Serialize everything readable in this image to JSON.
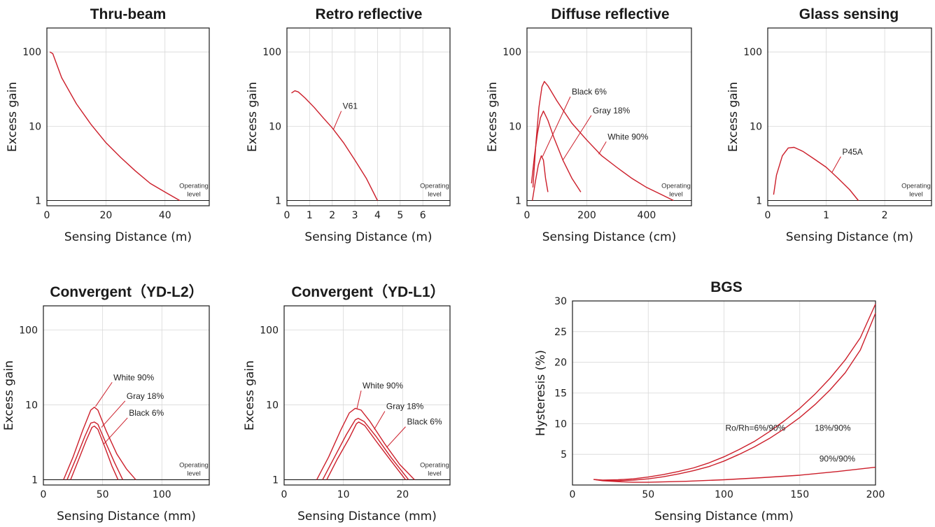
{
  "colors": {
    "curve": "#cc1e2a",
    "frame": "#1a1a1a",
    "grid": "#d8d8d8"
  },
  "chart_data": [
    {
      "type": "line",
      "title": "Thru-beam",
      "xlabel": "Sensing Distance (m)",
      "ylabel": "Excess gain",
      "yscale": "log",
      "xlim": [
        0,
        55
      ],
      "ylim": [
        0.85,
        210
      ],
      "xticks": [
        0,
        20,
        40
      ],
      "yticks": [
        1,
        10,
        100
      ],
      "operating_level": {
        "value": 1,
        "label_line1": "Operating",
        "label_line2": "level"
      },
      "series": [
        {
          "x": [
            1,
            2,
            5,
            10,
            15,
            20,
            25,
            30,
            35,
            40,
            45
          ],
          "y": [
            100,
            95,
            45,
            20,
            10.5,
            6,
            3.8,
            2.5,
            1.7,
            1.3,
            1
          ]
        }
      ],
      "annotations": []
    },
    {
      "type": "line",
      "title": "Retro reflective",
      "xlabel": "Sensing Distance (m)",
      "ylabel": "Excess gain",
      "yscale": "log",
      "xlim": [
        0,
        7.2
      ],
      "ylim": [
        0.85,
        210
      ],
      "xticks": [
        0,
        1,
        2,
        3,
        4,
        5,
        6
      ],
      "yticks": [
        1,
        10,
        100
      ],
      "operating_level": {
        "value": 1,
        "label_line1": "Operating",
        "label_line2": "level"
      },
      "series": [
        {
          "name": "V61",
          "x": [
            0.2,
            0.35,
            0.5,
            0.8,
            1.2,
            1.6,
            2.0,
            2.5,
            3.0,
            3.5,
            4.0
          ],
          "y": [
            28,
            30,
            29,
            24,
            18,
            13,
            9.5,
            6,
            3.5,
            2,
            1
          ]
        }
      ],
      "annotations": [
        {
          "text": "V61",
          "series": 0,
          "anchor_x": 2.05,
          "anchor_y": 9,
          "label_x": 2.4,
          "label_y": 16
        }
      ]
    },
    {
      "type": "line",
      "title": "Diffuse reflective",
      "xlabel": "Sensing Distance (cm)",
      "ylabel": "Excess gain",
      "yscale": "log",
      "xlim": [
        0,
        550
      ],
      "ylim": [
        0.85,
        210
      ],
      "xticks": [
        0,
        200,
        400
      ],
      "yticks": [
        1,
        10,
        100
      ],
      "operating_level": {
        "value": 1,
        "label_line1": "Operating",
        "label_line2": "level"
      },
      "series": [
        {
          "name": "White 90%",
          "x": [
            20,
            30,
            40,
            50,
            58,
            70,
            100,
            150,
            200,
            250,
            300,
            350,
            400,
            450,
            490
          ],
          "y": [
            1.5,
            6,
            18,
            34,
            40,
            35,
            22,
            11,
            6.5,
            4,
            2.8,
            2,
            1.5,
            1.2,
            1
          ]
        },
        {
          "name": "Gray 18%",
          "x": [
            15,
            25,
            35,
            45,
            55,
            70,
            90,
            120,
            150,
            180
          ],
          "y": [
            1.7,
            4,
            8,
            13,
            16,
            12,
            7,
            3.5,
            2,
            1.3
          ]
        },
        {
          "name": "Black 6%",
          "x": [
            18,
            28,
            38,
            48,
            55,
            62,
            70
          ],
          "y": [
            1,
            1.8,
            3,
            4,
            3.5,
            2,
            1.3
          ]
        }
      ],
      "annotations": [
        {
          "text": "Black 6%",
          "series": 2,
          "anchor_x": 52,
          "anchor_y": 3.9,
          "label_x": 145,
          "label_y": 25
        },
        {
          "text": "Gray 18%",
          "series": 1,
          "anchor_x": 120,
          "anchor_y": 3.5,
          "label_x": 215,
          "label_y": 14
        },
        {
          "text": "White 90%",
          "series": 0,
          "anchor_x": 240,
          "anchor_y": 4.2,
          "label_x": 265,
          "label_y": 6.2
        }
      ]
    },
    {
      "type": "line",
      "title": "Glass sensing",
      "xlabel": "Sensing Distance (m)",
      "ylabel": "Excess gain",
      "yscale": "log",
      "xlim": [
        0,
        2.8
      ],
      "ylim": [
        0.85,
        210
      ],
      "xticks": [
        0,
        1,
        2
      ],
      "yticks": [
        1,
        10,
        100
      ],
      "operating_level": {
        "value": 1,
        "label_line1": "Operating",
        "label_line2": "level"
      },
      "series": [
        {
          "name": "P45A",
          "x": [
            0.1,
            0.15,
            0.25,
            0.35,
            0.45,
            0.6,
            0.8,
            1.0,
            1.2,
            1.4,
            1.55
          ],
          "y": [
            1.2,
            2.2,
            4,
            5.1,
            5.2,
            4.6,
            3.6,
            2.8,
            2,
            1.4,
            1
          ]
        }
      ],
      "annotations": [
        {
          "text": "P45A",
          "series": 0,
          "anchor_x": 1.1,
          "anchor_y": 2.4,
          "label_x": 1.25,
          "label_y": 3.9
        }
      ]
    },
    {
      "type": "line",
      "title": "Convergent（YD-L2）",
      "xlabel": "Sensing Distance (mm)",
      "ylabel": "Excess gain",
      "yscale": "log",
      "xlim": [
        0,
        140
      ],
      "ylim": [
        0.85,
        210
      ],
      "xticks": [
        0,
        50,
        100
      ],
      "yticks": [
        1,
        10,
        100
      ],
      "operating_level": {
        "value": 1,
        "label_line1": "Operating",
        "label_line2": "level"
      },
      "series": [
        {
          "name": "White 90%",
          "x": [
            17,
            25,
            33,
            40,
            43,
            46,
            53,
            62,
            70,
            78
          ],
          "y": [
            1,
            2,
            4.5,
            8.5,
            9.3,
            8.5,
            4.5,
            2.2,
            1.4,
            1
          ]
        },
        {
          "name": "Gray 18%",
          "x": [
            20,
            28,
            35,
            40,
            43,
            46,
            52,
            60,
            67
          ],
          "y": [
            1,
            2,
            3.8,
            5.7,
            5.9,
            5.5,
            3.3,
            1.7,
            1
          ]
        },
        {
          "name": "Black 6%",
          "x": [
            23,
            30,
            36,
            41,
            43,
            46,
            52,
            58,
            63
          ],
          "y": [
            1,
            1.9,
            3.3,
            5,
            5.2,
            4.7,
            2.7,
            1.5,
            1
          ]
        }
      ],
      "annotations": [
        {
          "text": "White 90%",
          "series": 0,
          "anchor_x": 44,
          "anchor_y": 9.5,
          "label_x": 58,
          "label_y": 20
        },
        {
          "text": "Gray 18%",
          "series": 1,
          "anchor_x": 49,
          "anchor_y": 5,
          "label_x": 69,
          "label_y": 11.3
        },
        {
          "text": "Black 6%",
          "series": 2,
          "anchor_x": 51,
          "anchor_y": 3,
          "label_x": 71,
          "label_y": 6.7
        }
      ]
    },
    {
      "type": "line",
      "title": "Convergent（YD-L1）",
      "xlabel": "Sensing Distance (mm)",
      "ylabel": "Excess gain",
      "yscale": "log",
      "xlim": [
        0,
        28
      ],
      "ylim": [
        0.85,
        210
      ],
      "xticks": [
        0,
        10,
        20
      ],
      "yticks": [
        1,
        10,
        100
      ],
      "operating_level": {
        "value": 1,
        "label_line1": "Operating",
        "label_line2": "level"
      },
      "series": [
        {
          "name": "White 90%",
          "x": [
            5.5,
            7.5,
            9.5,
            11,
            12,
            13,
            14.5,
            17,
            19.5,
            22
          ],
          "y": [
            1,
            2,
            4.5,
            7.8,
            9,
            8.5,
            6,
            3,
            1.6,
            1
          ]
        },
        {
          "name": "Gray 18%",
          "x": [
            6.5,
            8.5,
            10.5,
            12,
            12.5,
            13.5,
            15.5,
            18,
            21
          ],
          "y": [
            1,
            2,
            4,
            6.3,
            6.6,
            6,
            3.8,
            2,
            1
          ]
        },
        {
          "name": "Black 6%",
          "x": [
            7.2,
            9,
            11,
            12.2,
            12.6,
            13.6,
            15.5,
            18,
            20.5
          ],
          "y": [
            1,
            1.9,
            3.6,
            5.6,
            5.9,
            5.3,
            3.3,
            1.8,
            1
          ]
        }
      ],
      "annotations": [
        {
          "text": "White 90%",
          "series": 0,
          "anchor_x": 12.3,
          "anchor_y": 9,
          "label_x": 13,
          "label_y": 15.5
        },
        {
          "text": "Gray 18%",
          "series": 1,
          "anchor_x": 15.2,
          "anchor_y": 4.7,
          "label_x": 17,
          "label_y": 8.2
        },
        {
          "text": "Black 6%",
          "series": 2,
          "anchor_x": 17.3,
          "anchor_y": 2.7,
          "label_x": 20.5,
          "label_y": 5.1
        }
      ]
    },
    {
      "type": "line",
      "title": "BGS",
      "xlabel": "Sensing Distance (mm)",
      "ylabel": "Hysteresis (%)",
      "yscale": "linear",
      "xlim": [
        0,
        200
      ],
      "ylim": [
        0,
        30
      ],
      "xticks": [
        0,
        50,
        100,
        150,
        200
      ],
      "yticks": [
        5,
        10,
        15,
        20,
        25,
        30
      ],
      "series": [
        {
          "name": "Ro/Rh=6%/90%",
          "x": [
            14,
            20,
            30,
            40,
            50,
            60,
            70,
            80,
            90,
            100,
            110,
            120,
            130,
            140,
            150,
            160,
            170,
            180,
            190,
            200
          ],
          "y": [
            0.9,
            0.8,
            0.85,
            1.0,
            1.3,
            1.7,
            2.2,
            2.8,
            3.6,
            4.6,
            5.8,
            7.1,
            8.7,
            10.5,
            12.5,
            14.8,
            17.4,
            20.4,
            24,
            29.5
          ]
        },
        {
          "name": "18%/90%",
          "x": [
            14,
            20,
            30,
            40,
            50,
            60,
            70,
            80,
            90,
            100,
            110,
            120,
            130,
            140,
            150,
            160,
            170,
            180,
            190,
            200
          ],
          "y": [
            0.9,
            0.75,
            0.7,
            0.8,
            1.0,
            1.35,
            1.8,
            2.35,
            3.0,
            3.9,
            5.0,
            6.2,
            7.6,
            9.2,
            11.0,
            13.1,
            15.5,
            18.3,
            22,
            28
          ]
        },
        {
          "name": "90%/90%",
          "x": [
            14,
            20,
            30,
            40,
            50,
            75,
            100,
            125,
            150,
            175,
            200
          ],
          "y": [
            0.9,
            0.7,
            0.55,
            0.45,
            0.45,
            0.6,
            0.85,
            1.2,
            1.6,
            2.2,
            2.9
          ]
        }
      ],
      "annotations": [
        {
          "text": "Ro/Rh=6%/90%",
          "series": 0,
          "anchor_x": 114,
          "anchor_y": 7.5,
          "label_x": 100,
          "label_y": 8.5,
          "leader": false
        },
        {
          "text": "18%/90%",
          "series": 1,
          "anchor_x": 160,
          "anchor_y": 10,
          "label_x": 159,
          "label_y": 8.5,
          "leader": false
        },
        {
          "text": "90%/90%",
          "series": 2,
          "anchor_x": 162,
          "anchor_y": 3.5,
          "label_x": 162,
          "label_y": 3.5,
          "leader": false
        }
      ]
    }
  ]
}
